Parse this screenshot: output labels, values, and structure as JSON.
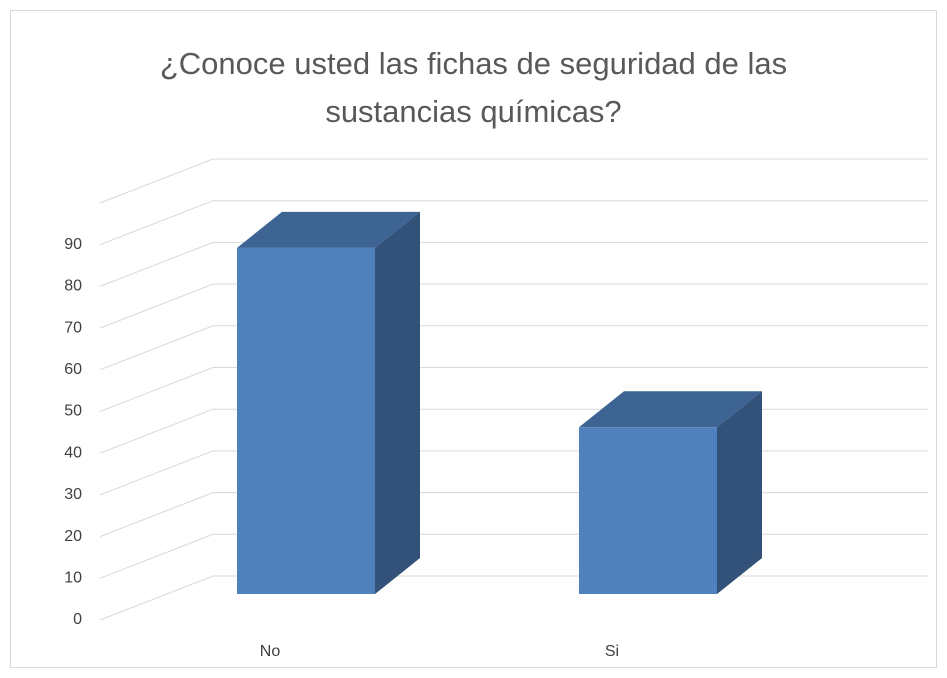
{
  "chart_data": {
    "type": "bar3d",
    "title": "¿Conoce usted las fichas de seguridad de las sustancias químicas?",
    "categories": [
      "No",
      "Si"
    ],
    "values": [
      83,
      40
    ],
    "color": "#4f81bd",
    "ylim": [
      0,
      100
    ],
    "yticks": [
      0,
      10,
      20,
      30,
      40,
      50,
      60,
      70,
      80,
      90
    ],
    "grid": true
  }
}
